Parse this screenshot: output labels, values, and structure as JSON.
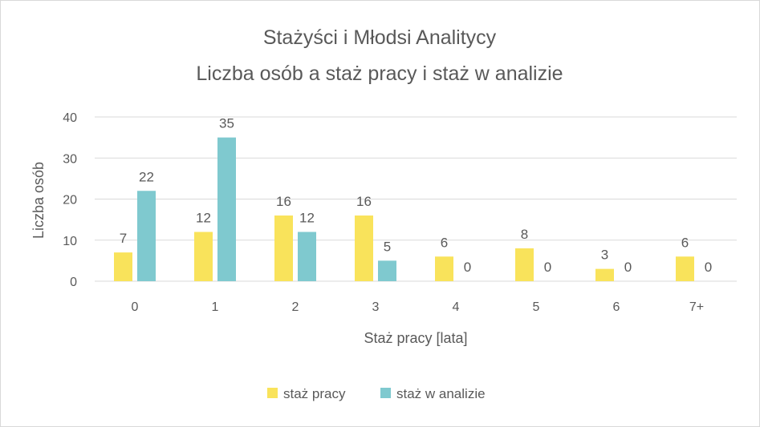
{
  "chart_data": {
    "type": "bar",
    "title": "Stażyści i Młodsi  Analitycy",
    "subtitle": "Liczba osób a staż pracy i staż w analizie",
    "xlabel": "Staż pracy [lata]",
    "ylabel": "Liczba osób",
    "ylim": [
      0,
      40
    ],
    "yticks": [
      "0",
      "10",
      "20",
      "30",
      "40"
    ],
    "grid": true,
    "legend_position": "bottom",
    "categories": [
      "0",
      "1",
      "2",
      "3",
      "4",
      "5",
      "6",
      "7+"
    ],
    "series": [
      {
        "name": "staż pracy",
        "color": "#F9E35B",
        "values": [
          7,
          12,
          16,
          16,
          6,
          8,
          3,
          6
        ]
      },
      {
        "name": "staż w analizie",
        "color": "#7FC9CF",
        "values": [
          22,
          35,
          12,
          5,
          0,
          0,
          0,
          0
        ]
      }
    ]
  }
}
